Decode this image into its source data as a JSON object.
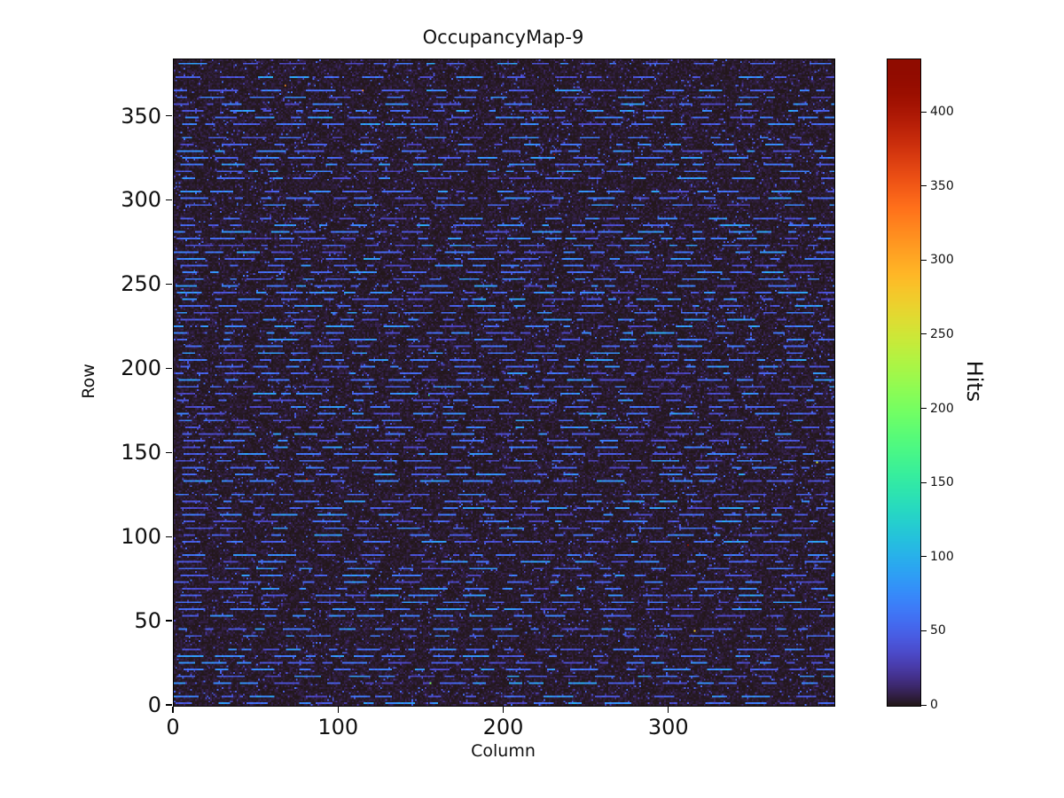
{
  "figure": {
    "background": "#ffffff",
    "text_color": "#111111"
  },
  "chart_data": {
    "type": "heatmap",
    "title": "OccupancyMap-9",
    "xlabel": "Column",
    "ylabel": "Row",
    "colorbar_label": "Hits",
    "ncols": 400,
    "nrows": 384,
    "xlim": [
      0,
      400
    ],
    "ylim": [
      0,
      384
    ],
    "vmin": 0,
    "vmax": 436,
    "colormap": "turbo",
    "x_ticks": [
      0,
      100,
      200,
      300
    ],
    "y_ticks": [
      0,
      50,
      100,
      150,
      200,
      250,
      300,
      350
    ],
    "colorbar_ticks": [
      0,
      50,
      100,
      150,
      200,
      250,
      300,
      350,
      400
    ],
    "legend": "none",
    "grid": false,
    "pattern": {
      "description": "Pixel-detector occupancy map: mostly near-zero hits (dark purple background speckle), periodic horizontal dashed streak rows of roughly 30-85 hits rendered light blue, sparse isolated low-hit pixels, and a handful of isolated hot pixels (green/orange/red) up to the ~436-hit maximum.",
      "seed": 9,
      "streak_row_period": 4,
      "streak_row_probability": 0.92,
      "streak_value_range": [
        30,
        85
      ],
      "dash_length_range": [
        4,
        18
      ],
      "gap_length_range": [
        3,
        22
      ],
      "background_value_range": [
        0,
        12
      ],
      "speckle_probability": 0.012,
      "speckle_value_range": [
        12,
        26
      ],
      "sparse_dot_probability": 0.03,
      "sparse_dot_value_range": [
        20,
        60
      ],
      "hot_pixel_count": 10,
      "hot_pixel_value_range": [
        150,
        436
      ]
    }
  }
}
